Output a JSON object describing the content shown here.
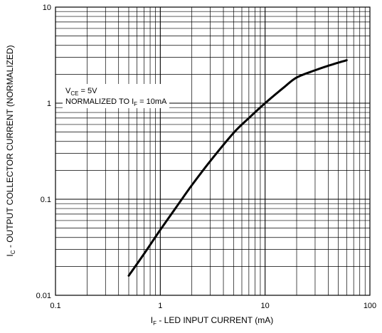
{
  "chart_data": {
    "type": "line",
    "xscale": "log",
    "yscale": "log",
    "xlim": [
      0.1,
      100
    ],
    "ylim": [
      0.01,
      10
    ],
    "grid": true,
    "x_ticks": [
      "0.1",
      "1",
      "10",
      "100"
    ],
    "y_ticks": [
      "10",
      "1",
      "0.1",
      "0.01"
    ],
    "xlabel": {
      "main": "I",
      "sub": "F",
      "rest": " - LED INPUT CURRENT (mA)"
    },
    "ylabel": {
      "main": "I",
      "sub": "C",
      "rest": " - OUTPUT COLLECTOR CURRENT (NORMALIZED)"
    },
    "annotations": [
      {
        "main": "V",
        "sub": "CE",
        "rest": " = 5V"
      },
      {
        "main": "NORMALIZED TO I",
        "sub": "F",
        "rest": " = 10mA"
      }
    ],
    "series": [
      {
        "x": [
          0.5,
          0.7,
          1,
          1.5,
          2,
          3,
          5,
          7,
          10,
          15,
          20,
          30,
          40,
          60
        ],
        "y": [
          0.016,
          0.027,
          0.048,
          0.09,
          0.14,
          0.25,
          0.49,
          0.7,
          1.0,
          1.45,
          1.85,
          2.2,
          2.45,
          2.8
        ]
      }
    ]
  }
}
